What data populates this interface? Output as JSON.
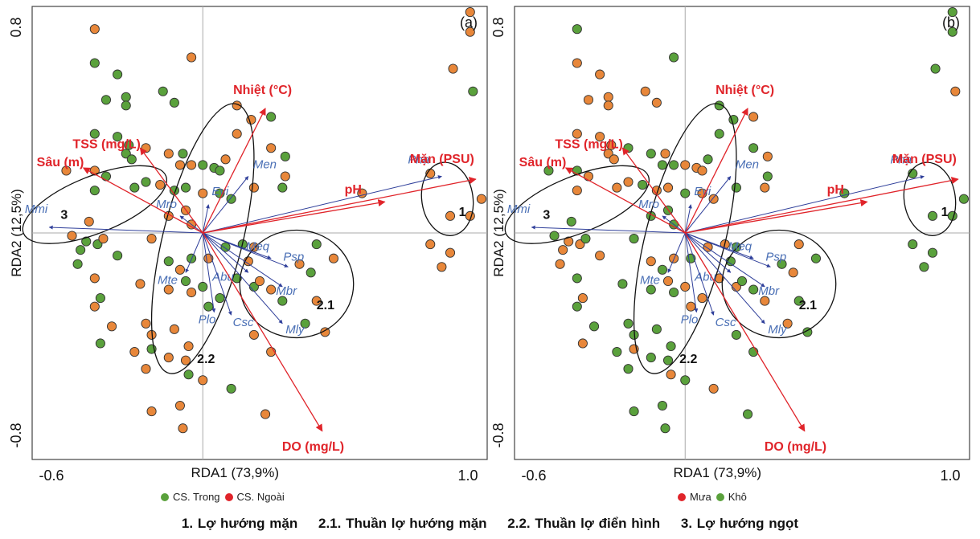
{
  "chart_data": [
    {
      "type": "scatter",
      "panel_label": "(a)",
      "xlabel": "RDA1 (73,9%)",
      "ylabel": "RDA2 (12,5%)",
      "xlim": [
        -0.6,
        1.0
      ],
      "ylim": [
        -0.8,
        0.8
      ],
      "x_ticks": [
        "-0.6",
        "1.0"
      ],
      "y_ticks": [
        "0.8",
        "-0.8"
      ],
      "legend": [
        {
          "label": "CS. Trong",
          "color": "#5aa13c"
        },
        {
          "label": "CS. Ngoài",
          "color": "#e0242a"
        }
      ],
      "env_vectors": [
        {
          "label": "Nhiệt (°C)",
          "x": 0.22,
          "y": 0.44
        },
        {
          "label": "TSS (mg/L)",
          "x": -0.22,
          "y": 0.3
        },
        {
          "label": "Sâu (m)",
          "x": -0.42,
          "y": 0.23
        },
        {
          "label": "pH",
          "x": 0.64,
          "y": 0.11
        },
        {
          "label": "Mặn (PSU)",
          "x": 0.96,
          "y": 0.19
        },
        {
          "label": "DO (mg/L)",
          "x": 0.42,
          "y": -0.7
        }
      ],
      "species_vectors": [
        {
          "label": "Mmi",
          "x": -0.54,
          "y": 0.02
        },
        {
          "label": "Mro",
          "x": -0.08,
          "y": 0.06
        },
        {
          "label": "Evi",
          "x": 0.02,
          "y": 0.1
        },
        {
          "label": "Men",
          "x": 0.16,
          "y": 0.2
        },
        {
          "label": "Pha",
          "x": 0.84,
          "y": 0.2
        },
        {
          "label": "Meq",
          "x": 0.24,
          "y": -0.09
        },
        {
          "label": "Psp",
          "x": 0.3,
          "y": -0.12
        },
        {
          "label": "Abu",
          "x": 0.16,
          "y": -0.14
        },
        {
          "label": "Mbr",
          "x": 0.28,
          "y": -0.19
        },
        {
          "label": "Mte",
          "x": -0.06,
          "y": -0.14
        },
        {
          "label": "Plo",
          "x": 0.04,
          "y": -0.28
        },
        {
          "label": "Csc",
          "x": 0.1,
          "y": -0.29
        },
        {
          "label": "Mly",
          "x": 0.28,
          "y": -0.32
        }
      ],
      "groups": [
        "1",
        "2.1",
        "2.2",
        "3"
      ],
      "points": [
        {
          "x": -0.38,
          "y": 0.72,
          "g": "o"
        },
        {
          "x": -0.38,
          "y": 0.6,
          "g": "g"
        },
        {
          "x": -0.3,
          "y": 0.56,
          "g": "g"
        },
        {
          "x": -0.34,
          "y": 0.47,
          "g": "g"
        },
        {
          "x": -0.27,
          "y": 0.48,
          "g": "g"
        },
        {
          "x": -0.27,
          "y": 0.45,
          "g": "g"
        },
        {
          "x": -0.14,
          "y": 0.5,
          "g": "g"
        },
        {
          "x": -0.1,
          "y": 0.46,
          "g": "g"
        },
        {
          "x": -0.04,
          "y": 0.62,
          "g": "o"
        },
        {
          "x": -0.38,
          "y": 0.35,
          "g": "g"
        },
        {
          "x": -0.3,
          "y": 0.34,
          "g": "g"
        },
        {
          "x": -0.26,
          "y": 0.31,
          "g": "g"
        },
        {
          "x": -0.27,
          "y": 0.28,
          "g": "g"
        },
        {
          "x": -0.25,
          "y": 0.26,
          "g": "g"
        },
        {
          "x": -0.2,
          "y": 0.3,
          "g": "o"
        },
        {
          "x": -0.12,
          "y": 0.28,
          "g": "o"
        },
        {
          "x": -0.08,
          "y": 0.24,
          "g": "o"
        },
        {
          "x": -0.07,
          "y": 0.28,
          "g": "g"
        },
        {
          "x": -0.04,
          "y": 0.24,
          "g": "o"
        },
        {
          "x": 0.0,
          "y": 0.24,
          "g": "g"
        },
        {
          "x": 0.04,
          "y": 0.23,
          "g": "g"
        },
        {
          "x": 0.06,
          "y": 0.22,
          "g": "g"
        },
        {
          "x": 0.08,
          "y": 0.26,
          "g": "o"
        },
        {
          "x": 0.12,
          "y": 0.35,
          "g": "o"
        },
        {
          "x": 0.17,
          "y": 0.4,
          "g": "o"
        },
        {
          "x": 0.12,
          "y": 0.45,
          "g": "o"
        },
        {
          "x": 0.24,
          "y": 0.41,
          "g": "g"
        },
        {
          "x": 0.24,
          "y": 0.3,
          "g": "o"
        },
        {
          "x": 0.29,
          "y": 0.27,
          "g": "g"
        },
        {
          "x": 0.29,
          "y": 0.2,
          "g": "o"
        },
        {
          "x": -0.48,
          "y": 0.22,
          "g": "o"
        },
        {
          "x": -0.38,
          "y": 0.22,
          "g": "o"
        },
        {
          "x": -0.34,
          "y": 0.2,
          "g": "g"
        },
        {
          "x": -0.24,
          "y": 0.16,
          "g": "g"
        },
        {
          "x": -0.2,
          "y": 0.18,
          "g": "g"
        },
        {
          "x": -0.15,
          "y": 0.17,
          "g": "o"
        },
        {
          "x": -0.1,
          "y": 0.15,
          "g": "g"
        },
        {
          "x": -0.06,
          "y": 0.16,
          "g": "g"
        },
        {
          "x": 0.0,
          "y": 0.14,
          "g": "o"
        },
        {
          "x": 0.06,
          "y": 0.14,
          "g": "g"
        },
        {
          "x": 0.1,
          "y": 0.12,
          "g": "g"
        },
        {
          "x": 0.18,
          "y": 0.16,
          "g": "o"
        },
        {
          "x": 0.28,
          "y": 0.16,
          "g": "g"
        },
        {
          "x": -0.38,
          "y": 0.15,
          "g": "g"
        },
        {
          "x": -0.4,
          "y": 0.04,
          "g": "o"
        },
        {
          "x": -0.46,
          "y": -0.01,
          "g": "o"
        },
        {
          "x": -0.43,
          "y": -0.06,
          "g": "g"
        },
        {
          "x": -0.41,
          "y": -0.03,
          "g": "g"
        },
        {
          "x": -0.44,
          "y": -0.11,
          "g": "g"
        },
        {
          "x": -0.37,
          "y": -0.04,
          "g": "g"
        },
        {
          "x": -0.35,
          "y": -0.02,
          "g": "o"
        },
        {
          "x": -0.3,
          "y": -0.08,
          "g": "g"
        },
        {
          "x": -0.18,
          "y": -0.02,
          "g": "o"
        },
        {
          "x": -0.12,
          "y": 0.06,
          "g": "o"
        },
        {
          "x": -0.06,
          "y": 0.08,
          "g": "o"
        },
        {
          "x": -0.04,
          "y": 0.03,
          "g": "o"
        },
        {
          "x": -0.04,
          "y": -0.09,
          "g": "g"
        },
        {
          "x": -0.12,
          "y": -0.1,
          "g": "g"
        },
        {
          "x": -0.08,
          "y": -0.13,
          "g": "o"
        },
        {
          "x": -0.06,
          "y": -0.17,
          "g": "g"
        },
        {
          "x": -0.38,
          "y": -0.16,
          "g": "o"
        },
        {
          "x": -0.36,
          "y": -0.23,
          "g": "g"
        },
        {
          "x": -0.38,
          "y": -0.26,
          "g": "o"
        },
        {
          "x": -0.22,
          "y": -0.18,
          "g": "o"
        },
        {
          "x": -0.12,
          "y": -0.2,
          "g": "o"
        },
        {
          "x": -0.04,
          "y": -0.21,
          "g": "o"
        },
        {
          "x": 0.0,
          "y": -0.19,
          "g": "g"
        },
        {
          "x": 0.02,
          "y": -0.26,
          "g": "g"
        },
        {
          "x": 0.06,
          "y": -0.23,
          "g": "g"
        },
        {
          "x": 0.02,
          "y": -0.09,
          "g": "o"
        },
        {
          "x": 0.08,
          "y": -0.05,
          "g": "g"
        },
        {
          "x": 0.14,
          "y": -0.04,
          "g": "g"
        },
        {
          "x": 0.16,
          "y": -0.1,
          "g": "o"
        },
        {
          "x": 0.12,
          "y": -0.16,
          "g": "g"
        },
        {
          "x": 0.18,
          "y": -0.19,
          "g": "g"
        },
        {
          "x": 0.2,
          "y": -0.17,
          "g": "o"
        },
        {
          "x": 0.24,
          "y": -0.2,
          "g": "o"
        },
        {
          "x": 0.28,
          "y": -0.24,
          "g": "g"
        },
        {
          "x": 0.34,
          "y": -0.11,
          "g": "o"
        },
        {
          "x": 0.38,
          "y": -0.14,
          "g": "g"
        },
        {
          "x": 0.4,
          "y": -0.24,
          "g": "o"
        },
        {
          "x": 0.36,
          "y": -0.32,
          "g": "g"
        },
        {
          "x": 0.43,
          "y": -0.35,
          "g": "o"
        },
        {
          "x": 0.46,
          "y": -0.09,
          "g": "o"
        },
        {
          "x": 0.18,
          "y": -0.05,
          "g": "o"
        },
        {
          "x": -0.32,
          "y": -0.33,
          "g": "o"
        },
        {
          "x": -0.36,
          "y": -0.39,
          "g": "g"
        },
        {
          "x": -0.2,
          "y": -0.32,
          "g": "o"
        },
        {
          "x": -0.18,
          "y": -0.36,
          "g": "o"
        },
        {
          "x": -0.18,
          "y": -0.41,
          "g": "g"
        },
        {
          "x": -0.1,
          "y": -0.34,
          "g": "o"
        },
        {
          "x": -0.12,
          "y": -0.44,
          "g": "o"
        },
        {
          "x": -0.05,
          "y": -0.4,
          "g": "o"
        },
        {
          "x": -0.06,
          "y": -0.45,
          "g": "o"
        },
        {
          "x": 0.0,
          "y": -0.52,
          "g": "o"
        },
        {
          "x": -0.05,
          "y": -0.5,
          "g": "g"
        },
        {
          "x": -0.24,
          "y": -0.42,
          "g": "o"
        },
        {
          "x": -0.2,
          "y": -0.48,
          "g": "o"
        },
        {
          "x": 0.1,
          "y": -0.55,
          "g": "g"
        },
        {
          "x": -0.18,
          "y": -0.63,
          "g": "o"
        },
        {
          "x": -0.08,
          "y": -0.61,
          "g": "o"
        },
        {
          "x": -0.07,
          "y": -0.69,
          "g": "o"
        },
        {
          "x": 0.22,
          "y": -0.64,
          "g": "o"
        },
        {
          "x": 0.24,
          "y": -0.42,
          "g": "o"
        },
        {
          "x": 0.18,
          "y": -0.36,
          "g": "o"
        },
        {
          "x": 0.4,
          "y": -0.04,
          "g": "g"
        },
        {
          "x": 0.56,
          "y": 0.14,
          "g": "o"
        },
        {
          "x": 0.8,
          "y": 0.21,
          "g": "o"
        },
        {
          "x": 0.87,
          "y": 0.06,
          "g": "o"
        },
        {
          "x": 0.94,
          "y": 0.06,
          "g": "o"
        },
        {
          "x": 0.98,
          "y": 0.12,
          "g": "o"
        },
        {
          "x": 0.8,
          "y": -0.04,
          "g": "o"
        },
        {
          "x": 0.87,
          "y": -0.07,
          "g": "o"
        },
        {
          "x": 0.84,
          "y": -0.12,
          "g": "o"
        },
        {
          "x": 0.94,
          "y": 0.78,
          "g": "o"
        },
        {
          "x": 0.94,
          "y": 0.71,
          "g": "o"
        },
        {
          "x": 0.88,
          "y": 0.58,
          "g": "o"
        },
        {
          "x": 0.95,
          "y": 0.5,
          "g": "g"
        }
      ]
    },
    {
      "type": "scatter",
      "panel_label": "(b)",
      "xlabel": "RDA1 (73,9%)",
      "ylabel": "RDA2 (12,5%)",
      "xlim": [
        -0.6,
        1.0
      ],
      "ylim": [
        -0.8,
        0.8
      ],
      "x_ticks": [
        "-0.6",
        "1.0"
      ],
      "y_ticks": [
        "0.8",
        "-0.8"
      ],
      "legend": [
        {
          "label": "Mưa",
          "color": "#e0242a"
        },
        {
          "label": "Khô",
          "color": "#5aa13c"
        }
      ],
      "groups": [
        "1",
        "2.1",
        "2.2",
        "3"
      ]
    }
  ],
  "footer": {
    "g1": "1. Lợ hướng mặn",
    "g21": "2.1. Thuần lợ hướng mặn",
    "g22": "2.2. Thuần lợ điển hình",
    "g3": "3. Lợ hướng ngọt"
  },
  "colors": {
    "orange": "#e8873a",
    "green": "#5aa13c",
    "env": "#e0242a",
    "species": "#2f3f9a",
    "species_label": "#4a6fb5"
  }
}
